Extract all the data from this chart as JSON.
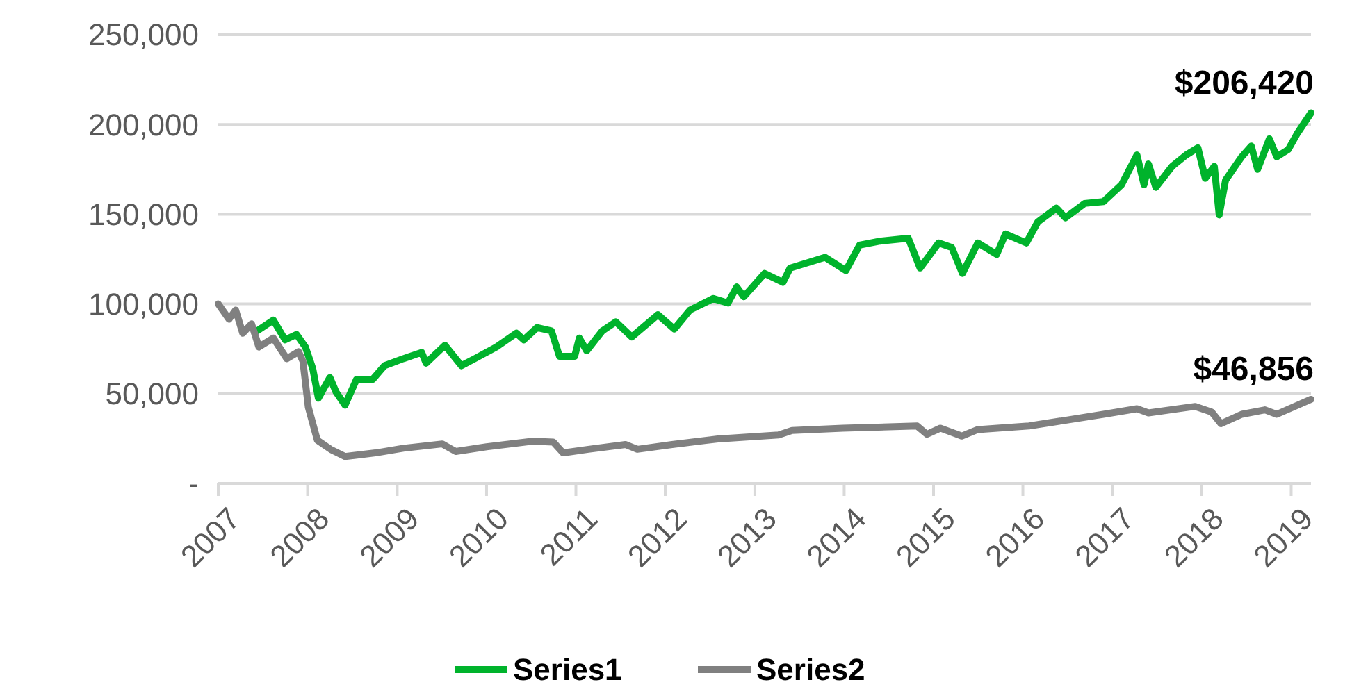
{
  "chart_data": {
    "type": "line",
    "xlim": [
      "2007",
      "2019-03-23"
    ],
    "xticks": [
      "2007",
      "2008",
      "2009",
      "2010",
      "2011",
      "2012",
      "2013",
      "2014",
      "2015",
      "2016",
      "2017",
      "2018",
      "2019"
    ],
    "ylim": [
      0,
      250000
    ],
    "yticks": [
      {
        "value": 0,
        "label": "-"
      },
      {
        "value": 50000,
        "label": "50,000"
      },
      {
        "value": 100000,
        "label": "100,000"
      },
      {
        "value": 150000,
        "label": "150,000"
      },
      {
        "value": 200000,
        "label": "200,000"
      },
      {
        "value": 250000,
        "label": "250,000"
      }
    ],
    "grid": "y",
    "legend": "bottom",
    "marker": "none",
    "line_style": "solid",
    "series": [
      {
        "name": "Series1",
        "color": "#00b32c",
        "x": [
          "2007-06-09",
          "2007-08-14",
          "2007-10-01",
          "2007-11-17",
          "2007-12-23",
          "2008-01-22",
          "2008-02-14",
          "2008-04-01",
          "2008-04-26",
          "2008-06-02",
          "2008-07-19",
          "2008-09-23",
          "2008-11-10",
          "2009-01-26",
          "2009-04-11",
          "2009-04-29",
          "2009-07-15",
          "2009-09-20",
          "2009-11-14",
          "2010-02-10",
          "2010-05-03",
          "2010-06-02",
          "2010-07-26",
          "2010-09-23",
          "2010-10-26",
          "2010-12-27",
          "2011-01-15",
          "2011-02-14",
          "2011-04-19",
          "2011-06-13",
          "2011-08-17",
          "2011-12-02",
          "2012-02-07",
          "2012-04-11",
          "2012-07-15",
          "2012-09-13",
          "2012-10-19",
          "2012-11-17",
          "2013-02-10",
          "2013-04-26",
          "2013-05-25",
          "2013-10-15",
          "2014-01-08",
          "2014-03-05",
          "2014-05-28",
          "2014-09-20",
          "2014-11-07",
          "2015-01-22",
          "2015-03-16",
          "2015-04-29",
          "2015-07-01",
          "2015-09-16",
          "2015-10-22",
          "2016-01-15",
          "2016-03-02",
          "2016-05-17",
          "2016-06-23",
          "2016-09-09",
          "2016-11-25",
          "2017-02-07",
          "2017-04-11",
          "2017-05-10",
          "2017-05-28",
          "2017-06-27",
          "2017-09-02",
          "2017-10-29",
          "2017-12-16",
          "2018-01-15",
          "2018-02-21",
          "2018-03-13",
          "2018-04-08",
          "2018-06-13",
          "2018-07-22",
          "2018-08-17",
          "2018-10-04",
          "2018-11-03",
          "2018-12-20",
          "2019-01-26",
          "2019-03-23"
        ],
        "values": [
          85000,
          91000,
          80000,
          83000,
          76000,
          64000,
          47500,
          59000,
          51000,
          43600,
          58000,
          58000,
          65600,
          69500,
          73000,
          67000,
          77000,
          65600,
          69500,
          76000,
          83700,
          80000,
          86800,
          85000,
          70800,
          70800,
          81000,
          73900,
          85000,
          90000,
          81600,
          94000,
          86000,
          96600,
          103000,
          100500,
          109500,
          104000,
          117000,
          112000,
          120000,
          126000,
          118600,
          132800,
          135000,
          136600,
          120000,
          134000,
          131500,
          117000,
          134000,
          127600,
          139000,
          134000,
          145700,
          153400,
          148000,
          156000,
          157000,
          166400,
          183000,
          166400,
          178000,
          165000,
          176700,
          183000,
          187000,
          170000,
          176700,
          149600,
          169000,
          182000,
          188000,
          175000,
          192000,
          182000,
          186000,
          195000,
          206420
        ]
      },
      {
        "name": "Series2",
        "color": "#808080",
        "x": [
          "2007-01-01",
          "2007-02-14",
          "2007-03-13",
          "2007-04-11",
          "2007-05-17",
          "2007-06-16",
          "2007-08-14",
          "2007-10-08",
          "2007-11-25",
          "2007-12-13",
          "2008-01-04",
          "2008-02-10",
          "2008-04-04",
          "2008-06-02",
          "2008-10-04",
          "2009-01-26",
          "2009-07-04",
          "2009-08-28",
          "2010-01-01",
          "2010-07-08",
          "2010-10-01",
          "2010-11-10",
          "2011-02-21",
          "2011-07-22",
          "2011-09-09",
          "2012-01-29",
          "2012-08-03",
          "2013-04-08",
          "2013-06-02",
          "2013-12-27",
          "2014-10-26",
          "2014-12-05",
          "2015-01-29",
          "2015-04-26",
          "2015-07-01",
          "2016-01-26",
          "2016-11-25",
          "2017-04-11",
          "2017-05-28",
          "2017-12-05",
          "2018-02-10",
          "2018-03-20",
          "2018-06-13",
          "2018-09-16",
          "2018-11-03",
          "2019-03-23"
        ],
        "values": [
          100000,
          91500,
          96600,
          83700,
          88900,
          76000,
          81000,
          69500,
          73400,
          68000,
          42400,
          24000,
          19000,
          15000,
          17000,
          19600,
          22000,
          17800,
          20400,
          23500,
          23000,
          17000,
          19000,
          21700,
          19000,
          21700,
          24800,
          27000,
          29500,
          30800,
          32000,
          27400,
          30800,
          26400,
          30000,
          32000,
          38500,
          41600,
          39300,
          42900,
          39800,
          33300,
          38500,
          41000,
          38500,
          46856
        ]
      }
    ],
    "annotations": [
      {
        "text": "$206,420",
        "x": "2019-03-23",
        "y": 206420
      },
      {
        "text": "$46,856",
        "x": "2019-03-23",
        "y": 46856
      }
    ]
  }
}
